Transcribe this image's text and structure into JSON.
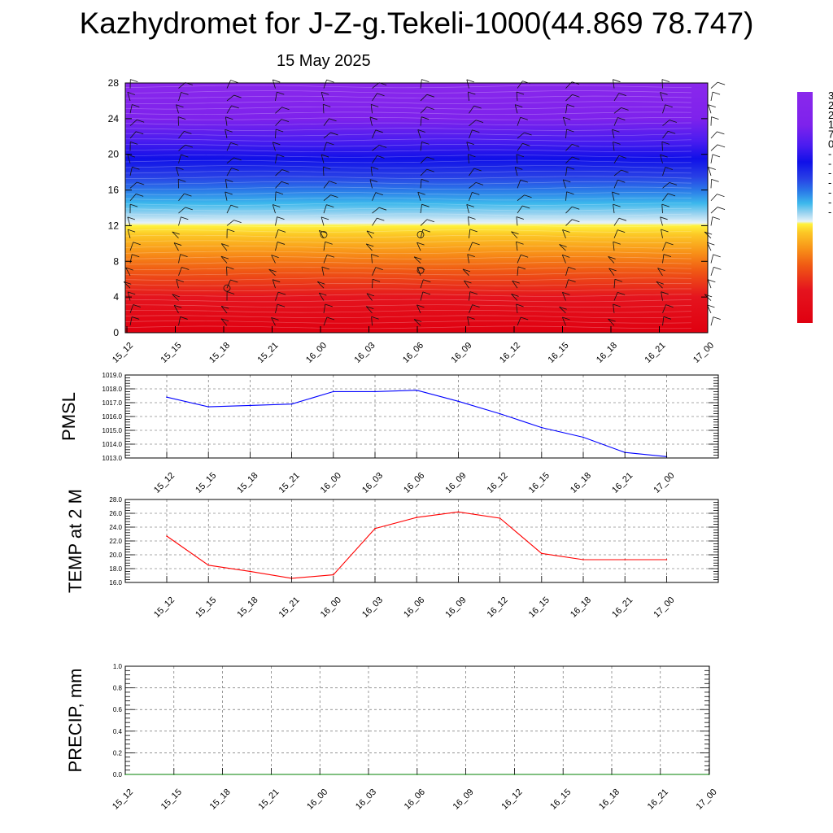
{
  "title": "Kazhydromet for J-Z-g.Tekeli-1000(44.869 78.747)",
  "subtitle": "15 May 2025",
  "time_labels": [
    "15_12",
    "15_15",
    "15_18",
    "15_21",
    "16_00",
    "16_03",
    "16_06",
    "16_09",
    "16_12",
    "16_15",
    "16_18",
    "16_21",
    "17_00"
  ],
  "chart_data": [
    {
      "type": "heatmap",
      "name": "vertical cross-section",
      "x": [
        "15_12",
        "15_15",
        "15_18",
        "15_21",
        "16_00",
        "16_03",
        "16_06",
        "16_09",
        "16_12",
        "16_15",
        "16_18",
        "16_21",
        "17_00"
      ],
      "y_ticks": [
        0,
        4,
        8,
        12,
        16,
        20,
        24,
        28
      ],
      "ylim": [
        0,
        28
      ],
      "colorbar_ticks": [
        "3",
        "2",
        "2",
        "1",
        "7",
        "0",
        "-",
        "-",
        "-",
        "-",
        "-",
        "-",
        "-"
      ],
      "color_stops": [
        {
          "y": 0,
          "color": "#e00010"
        },
        {
          "y": 4,
          "color": "#e5141e"
        },
        {
          "y": 7,
          "color": "#f05a14"
        },
        {
          "y": 9,
          "color": "#f89218"
        },
        {
          "y": 11,
          "color": "#fcc826"
        },
        {
          "y": 12,
          "color": "#fff23c"
        },
        {
          "y": 12.3,
          "color": "#e6f2f8"
        },
        {
          "y": 13.3,
          "color": "#9cd4f0"
        },
        {
          "y": 14.5,
          "color": "#3cb8ec"
        },
        {
          "y": 16,
          "color": "#2a78e8"
        },
        {
          "y": 17.5,
          "color": "#2840e6"
        },
        {
          "y": 19.5,
          "color": "#1010e8"
        },
        {
          "y": 21.5,
          "color": "#4a1cf0"
        },
        {
          "y": 24,
          "color": "#7e22ec"
        },
        {
          "y": 28,
          "color": "#8a28ec"
        }
      ]
    },
    {
      "type": "line",
      "ylabel": "PMSL",
      "x": [
        "15_12",
        "15_15",
        "15_18",
        "15_21",
        "16_00",
        "16_03",
        "16_06",
        "16_09",
        "16_12",
        "16_15",
        "16_18",
        "16_21",
        "17_00"
      ],
      "values": [
        1017.4,
        1016.7,
        1016.8,
        1016.9,
        1017.8,
        1017.8,
        1017.9,
        1017.1,
        1016.2,
        1015.2,
        1014.5,
        1013.4,
        1013.1
      ],
      "ylim": [
        1013.0,
        1019.0
      ],
      "y_ticks": [
        "1013.0",
        "1014.0",
        "1015.0",
        "1016.0",
        "1017.0",
        "1018.0",
        "1019.0"
      ],
      "color": "#0000ff",
      "grid": true
    },
    {
      "type": "line",
      "ylabel": "TEMP at 2 M",
      "x": [
        "15_12",
        "15_15",
        "15_18",
        "15_21",
        "16_00",
        "16_03",
        "16_06",
        "16_09",
        "16_12",
        "16_15",
        "16_18",
        "16_21",
        "17_00"
      ],
      "values": [
        22.7,
        18.5,
        17.6,
        16.6,
        17.1,
        23.8,
        25.4,
        26.2,
        25.3,
        20.2,
        19.3,
        19.3,
        19.3
      ],
      "ylim": [
        16.0,
        28.0
      ],
      "y_ticks": [
        "16.0",
        "18.0",
        "20.0",
        "22.0",
        "24.0",
        "26.0",
        "28.0"
      ],
      "color": "#ff0000",
      "grid": true
    },
    {
      "type": "line",
      "ylabel": "PRECIP, mm",
      "x": [
        "15_12",
        "15_15",
        "15_18",
        "15_21",
        "16_00",
        "16_03",
        "16_06",
        "16_09",
        "16_12",
        "16_15",
        "16_18",
        "16_21",
        "17_00"
      ],
      "values": [
        0,
        0,
        0,
        0,
        0,
        0,
        0,
        0,
        0,
        0,
        0,
        0,
        0
      ],
      "ylim": [
        0.0,
        1.0
      ],
      "y_ticks": [
        "0.0",
        "0.2",
        "0.4",
        "0.6",
        "0.8",
        "1.0"
      ],
      "color": "#008000",
      "grid": true
    }
  ]
}
